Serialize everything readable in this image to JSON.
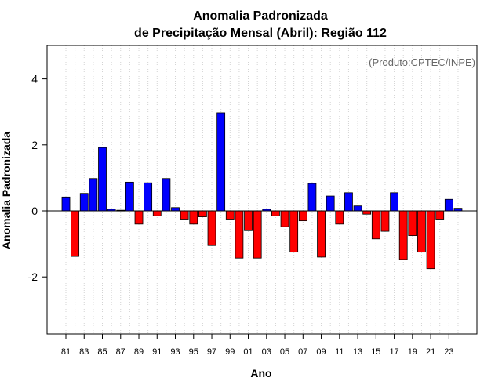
{
  "chart_data": {
    "type": "bar",
    "title": "Anomalia Padronizada",
    "subtitle": "de Precipitação Mensal (Abril): Região 112",
    "xlabel": "Ano",
    "ylabel": "Anomalia Padronizada",
    "annotation": "(Produto:CPTEC/INPE)",
    "ylim": [
      -3.8,
      5.0
    ],
    "yticks": [
      4,
      2,
      0,
      -2
    ],
    "grid": "vertical dotted",
    "colors": {
      "positive": "#0000ff",
      "negative": "#ff0000",
      "outline": "#000000",
      "zero_line": "#000000",
      "grid": "#d3d3d3"
    },
    "categories": [
      "81",
      "82",
      "83",
      "84",
      "85",
      "86",
      "87",
      "88",
      "89",
      "90",
      "91",
      "92",
      "93",
      "94",
      "95",
      "96",
      "97",
      "98",
      "99",
      "00",
      "01",
      "02",
      "03",
      "04",
      "05",
      "06",
      "07",
      "08",
      "09",
      "10",
      "11",
      "12",
      "13",
      "14",
      "15",
      "16",
      "17",
      "18",
      "19",
      "20",
      "21",
      "22",
      "23",
      "24"
    ],
    "tick_labels": [
      "81",
      "83",
      "85",
      "87",
      "89",
      "91",
      "93",
      "95",
      "97",
      "99",
      "01",
      "03",
      "05",
      "07",
      "09",
      "11",
      "13",
      "15",
      "17",
      "19",
      "21",
      "23"
    ],
    "values": [
      0.42,
      -1.38,
      0.53,
      0.98,
      1.92,
      0.05,
      0.02,
      0.87,
      -0.4,
      0.85,
      -0.15,
      0.98,
      0.1,
      -0.25,
      -0.4,
      -0.18,
      -1.05,
      2.97,
      -0.25,
      -1.43,
      -0.6,
      -1.43,
      0.05,
      -0.15,
      -0.48,
      -1.25,
      -0.3,
      0.83,
      -1.4,
      0.45,
      -0.4,
      0.55,
      0.15,
      -0.1,
      -0.85,
      -0.62,
      0.55,
      -1.47,
      -0.75,
      -1.25,
      -1.75,
      -0.25,
      0.35,
      0.08
    ]
  }
}
